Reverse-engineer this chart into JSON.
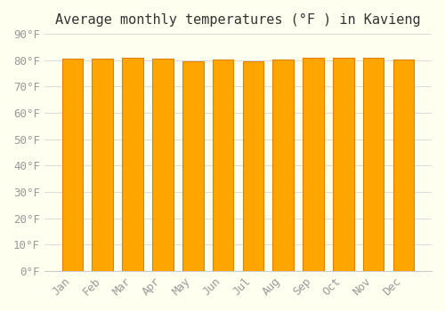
{
  "title": "Average monthly temperatures (°F ) in Kavieng",
  "months": [
    "Jan",
    "Feb",
    "Mar",
    "Apr",
    "May",
    "Jun",
    "Jul",
    "Aug",
    "Sep",
    "Oct",
    "Nov",
    "Dec"
  ],
  "values": [
    80.6,
    80.6,
    80.8,
    80.6,
    79.5,
    80.2,
    79.7,
    80.4,
    81.0,
    81.1,
    81.1,
    80.2
  ],
  "bar_color": "#FFA500",
  "bar_edge_color": "#E08000",
  "background_color": "#FFFFF0",
  "grid_color": "#DDDDDD",
  "ylim": [
    0,
    90
  ],
  "yticks": [
    0,
    10,
    20,
    30,
    40,
    50,
    60,
    70,
    80,
    90
  ],
  "title_fontsize": 11,
  "tick_fontsize": 9,
  "font_family": "monospace"
}
